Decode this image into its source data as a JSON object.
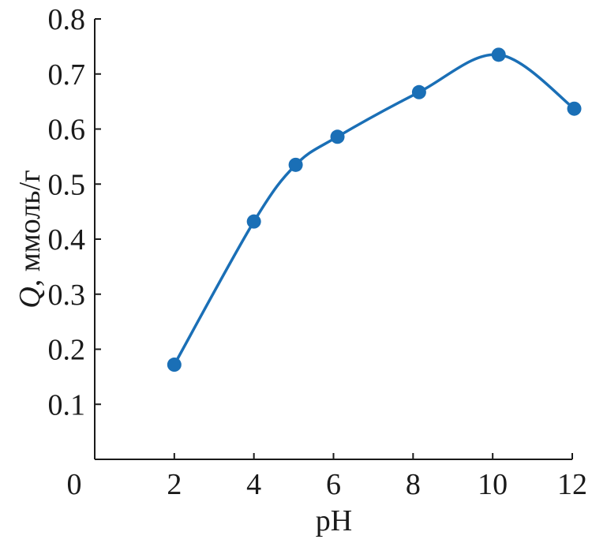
{
  "chart_data": {
    "type": "line",
    "title": "",
    "xlabel": "pH",
    "ylabel_symbol": "Q",
    "ylabel_unit": ", ммоль/г",
    "xlim": [
      0,
      12
    ],
    "ylim": [
      0,
      0.8
    ],
    "x_ticks": [
      "0",
      "2",
      "4",
      "6",
      "8",
      "10",
      "12"
    ],
    "y_ticks": [
      "0.1",
      "0.2",
      "0.3",
      "0.4",
      "0.5",
      "0.6",
      "0.7",
      "0.8"
    ],
    "grid": false,
    "series": [
      {
        "color": "#1a6fb6",
        "x": [
          2.0,
          4.0,
          5.05,
          6.1,
          8.15,
          10.15,
          12.05
        ],
        "y": [
          0.172,
          0.432,
          0.535,
          0.586,
          0.667,
          0.735,
          0.637
        ]
      }
    ]
  }
}
